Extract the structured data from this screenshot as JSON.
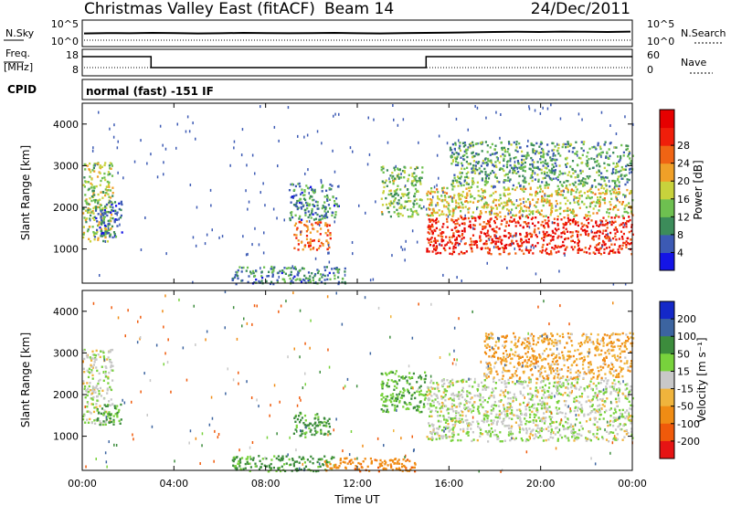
{
  "header": {
    "title": "Christmas Valley East (fitACF)",
    "beam": "Beam 14",
    "date": "24/Dec/2011"
  },
  "noise_panel": {
    "left_label": "N.Sky",
    "right_label": "N.Search",
    "left_ticks": [
      "10^5",
      "10^0"
    ],
    "right_ticks": [
      "10^5",
      "10^0"
    ],
    "solid_level": [
      0.72,
      0.74,
      0.73,
      0.75,
      0.74,
      0.72,
      0.73,
      0.75,
      0.74,
      0.73,
      0.74,
      0.75,
      0.73,
      0.72,
      0.74,
      0.75,
      0.76,
      0.78,
      0.8,
      0.81,
      0.8,
      0.82,
      0.81,
      0.8,
      0.82
    ]
  },
  "freq_panel": {
    "left_label_top": "Freq.",
    "left_label_bottom": "[MHz]",
    "right_label": "Nave",
    "left_ticks": [
      "18",
      "8"
    ],
    "right_ticks": [
      "60",
      "0"
    ],
    "freq_steps": [
      {
        "from": 0,
        "to": 3,
        "value": "high"
      },
      {
        "from": 3,
        "to": 15,
        "value": "low"
      },
      {
        "from": 15,
        "to": 24,
        "value": "high"
      }
    ]
  },
  "cpid": {
    "label": "CPID",
    "value": "normal (fast) -151 IF"
  },
  "axes": {
    "ylabel": "Slant Range [km]",
    "yticks": [
      "1000",
      "2000",
      "3000",
      "4000"
    ],
    "xticks": [
      "00:00",
      "04:00",
      "08:00",
      "12:00",
      "16:00",
      "20:00",
      "00:00"
    ],
    "xlabel": "Time UT"
  },
  "power_colorbar": {
    "label": "Power [dB]",
    "ticks": [
      "4",
      "8",
      "12",
      "16",
      "20",
      "24",
      "28"
    ],
    "colors": [
      "#1414e6",
      "#3c5ab4",
      "#3c8c5a",
      "#6ec050",
      "#c8d23c",
      "#f0a028",
      "#f06414",
      "#f01e0a",
      "#e60000"
    ]
  },
  "velocity_colorbar": {
    "label": "Velocity [m s⁻¹]",
    "ticks": [
      "200",
      "100",
      "50",
      "15",
      "-15",
      "-50",
      "-100",
      "-200"
    ],
    "colors": [
      "#1428c8",
      "#3c64a0",
      "#3c8c3c",
      "#78d23c",
      "#c8c8c8",
      "#f0b43c",
      "#f08c14",
      "#f05a0a",
      "#e61414"
    ]
  },
  "chart_data": [
    {
      "type": "heatmap",
      "title": "Power",
      "xlabel": "Time UT",
      "ylabel": "Slant Range [km]",
      "xlim": [
        0,
        24
      ],
      "ylim": [
        180,
        4500
      ],
      "colorbar": "Power [dB]",
      "regions": [
        {
          "t0": 0.0,
          "t1": 1.3,
          "r0": 1200,
          "r1": 3100,
          "db": 14
        },
        {
          "t0": 0.5,
          "t1": 1.7,
          "r0": 1300,
          "r1": 2200,
          "db": 6
        },
        {
          "t0": 6.5,
          "t1": 11.5,
          "r0": 180,
          "r1": 600,
          "db": 8
        },
        {
          "t0": 9.2,
          "t1": 10.8,
          "r0": 1000,
          "r1": 1700,
          "db": 22
        },
        {
          "t0": 9.0,
          "t1": 11.2,
          "r0": 1700,
          "r1": 2600,
          "db": 8
        },
        {
          "t0": 13.0,
          "t1": 14.8,
          "r0": 1800,
          "r1": 3000,
          "db": 12
        },
        {
          "t0": 15.0,
          "t1": 24.0,
          "r0": 900,
          "r1": 1800,
          "db": 26
        },
        {
          "t0": 15.0,
          "t1": 24.0,
          "r0": 1800,
          "r1": 2500,
          "db": 16
        },
        {
          "t0": 16.0,
          "t1": 24.0,
          "r0": 2500,
          "r1": 3600,
          "db": 10
        }
      ]
    },
    {
      "type": "heatmap",
      "title": "Velocity",
      "xlabel": "Time UT",
      "ylabel": "Slant Range [km]",
      "xlim": [
        0,
        24
      ],
      "ylim": [
        180,
        4500
      ],
      "colorbar": "Velocity [m s^-1]",
      "regions": [
        {
          "t0": 0.0,
          "t1": 1.3,
          "r0": 1300,
          "r1": 3100,
          "v": 0
        },
        {
          "t0": 0.6,
          "t1": 1.7,
          "r0": 1300,
          "r1": 1800,
          "v": 40
        },
        {
          "t0": 6.5,
          "t1": 11.0,
          "r0": 180,
          "r1": 550,
          "v": 40
        },
        {
          "t0": 9.2,
          "t1": 10.8,
          "r0": 1000,
          "r1": 1600,
          "v": 40
        },
        {
          "t0": 10.5,
          "t1": 14.5,
          "r0": 180,
          "r1": 500,
          "v": -60
        },
        {
          "t0": 13.0,
          "t1": 15.0,
          "r0": 1600,
          "r1": 2600,
          "v": 30
        },
        {
          "t0": 15.0,
          "t1": 24.0,
          "r0": 900,
          "r1": 2400,
          "v": 0
        },
        {
          "t0": 17.5,
          "t1": 24.0,
          "r0": 2400,
          "r1": 3500,
          "v": -30
        }
      ]
    }
  ]
}
